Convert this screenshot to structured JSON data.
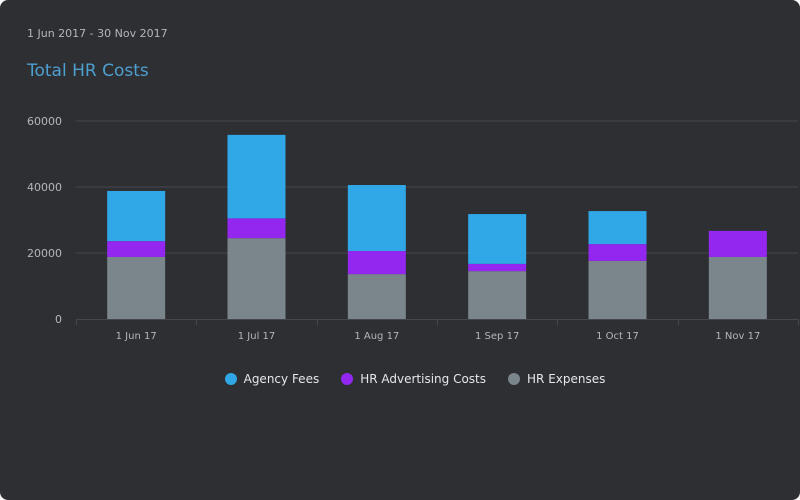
{
  "header": {
    "date_range": "1 Jun 2017 - 30 Nov 2017",
    "title": "Total HR Costs"
  },
  "colors": {
    "background": "#2e2f33",
    "gridline": "#45474c",
    "axis_text": "#b4b6ba",
    "title": "#4d9fd0"
  },
  "chart_data": {
    "type": "bar",
    "stacked": true,
    "title": "Total HR Costs",
    "subtitle": "1 Jun 2017 - 30 Nov 2017",
    "xlabel": "",
    "ylabel": "",
    "categories": [
      "1 Jun 17",
      "1 Jul 17",
      "1 Aug 17",
      "1 Sep 17",
      "1 Oct 17",
      "1 Nov 17"
    ],
    "ylim": [
      0,
      60000
    ],
    "yticks": [
      0,
      20000,
      40000,
      60000
    ],
    "ytick_labels": [
      "0",
      "20000",
      "40000",
      "60000"
    ],
    "grid": true,
    "legend_position": "bottom-center",
    "series": [
      {
        "name": "HR Expenses",
        "color": "#7b858c",
        "values": [
          18800,
          24500,
          13600,
          14500,
          17600,
          18800
        ]
      },
      {
        "name": "HR Advertising Costs",
        "color": "#9327f0",
        "values": [
          4800,
          6000,
          7000,
          2200,
          5100,
          7900
        ]
      },
      {
        "name": "Agency Fees",
        "color": "#30a7e6",
        "values": [
          15200,
          25300,
          20000,
          15100,
          10000,
          0
        ]
      }
    ]
  },
  "legend": [
    {
      "label": "Agency Fees",
      "color": "#30a7e6"
    },
    {
      "label": "HR Advertising Costs",
      "color": "#9327f0"
    },
    {
      "label": "HR Expenses",
      "color": "#7b858c"
    }
  ]
}
